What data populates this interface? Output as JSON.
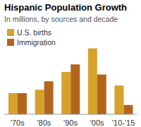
{
  "chart_data": {
    "type": "bar",
    "title": "Hispanic Population Growth",
    "subtitle": "In millions, by sources and decade",
    "categories": [
      "'70s",
      "'80s",
      "'90s",
      "'00s",
      "'10-'15"
    ],
    "series": [
      {
        "name": "U.S. births",
        "color": "#d7a22a",
        "values": [
          2.5,
          2.9,
          5.0,
          7.8,
          3.4
        ]
      },
      {
        "name": "Immigration",
        "color": "#b3651e",
        "values": [
          2.5,
          3.9,
          5.9,
          4.7,
          1.1
        ]
      }
    ],
    "ylim": [
      0,
      8
    ],
    "tick_labels": "x",
    "grid": false,
    "legend": "upper left"
  }
}
